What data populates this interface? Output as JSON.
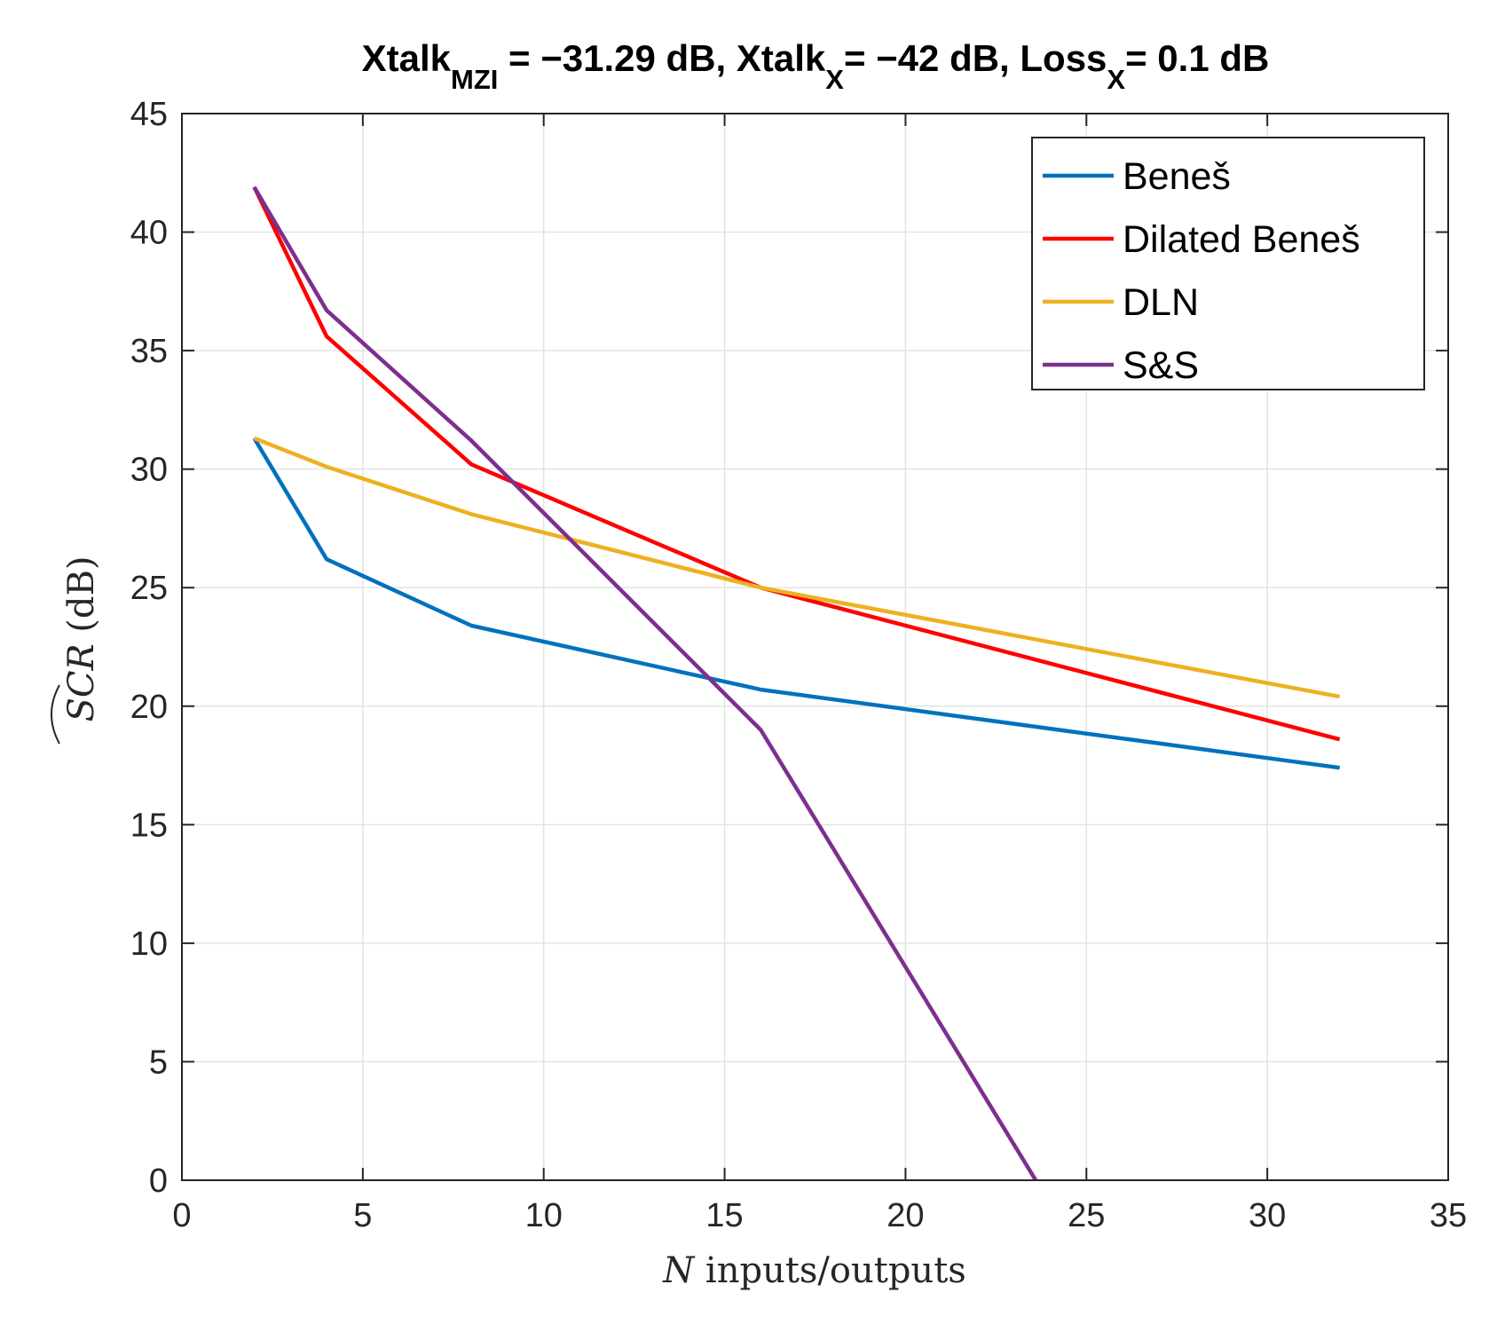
{
  "chart_data": {
    "type": "line",
    "title": {
      "parts": [
        {
          "text": "Xtalk",
          "sub": "MZI"
        },
        {
          "text": " = −31.29 dB, Xtalk",
          "sub": "X"
        },
        {
          "text": "= −42 dB, Loss",
          "sub": "X"
        },
        {
          "text": "= 0.1 dB",
          "sub": ""
        }
      ]
    },
    "xlabel": {
      "var": "N",
      "rest": " inputs/outputs"
    },
    "ylabel": {
      "var": "SCR",
      "hat": true,
      "rest": " (dB)"
    },
    "xlim": [
      0,
      35
    ],
    "ylim": [
      0,
      45
    ],
    "xticks": [
      0,
      5,
      10,
      15,
      20,
      25,
      30,
      35
    ],
    "yticks": [
      0,
      5,
      10,
      15,
      20,
      25,
      30,
      35,
      40,
      45
    ],
    "xtick_labels": [
      "0",
      "5",
      "10",
      "15",
      "20",
      "25",
      "30",
      "35"
    ],
    "ytick_labels": [
      "0",
      "5",
      "10",
      "15",
      "20",
      "25",
      "30",
      "35",
      "40",
      "45"
    ],
    "grid": true,
    "legend_position": "top-right",
    "series": [
      {
        "name": "Beneš",
        "color": "#0072BD",
        "x": [
          2,
          4,
          8,
          16,
          32
        ],
        "y": [
          31.3,
          26.2,
          23.4,
          20.7,
          17.4
        ]
      },
      {
        "name": "Dilated Beneš",
        "color": "#FF0000",
        "x": [
          2,
          4,
          8,
          16,
          32
        ],
        "y": [
          41.9,
          35.6,
          30.2,
          25.0,
          18.6
        ]
      },
      {
        "name": "DLN",
        "color": "#EDB120",
        "x": [
          2,
          4,
          8,
          16,
          32
        ],
        "y": [
          31.3,
          30.1,
          28.1,
          25.0,
          20.4
        ]
      },
      {
        "name": "S&S",
        "color": "#7E2F8E",
        "x": [
          2,
          4,
          8,
          16,
          23.6
        ],
        "y": [
          41.9,
          36.7,
          31.2,
          19.0,
          0
        ]
      }
    ]
  }
}
